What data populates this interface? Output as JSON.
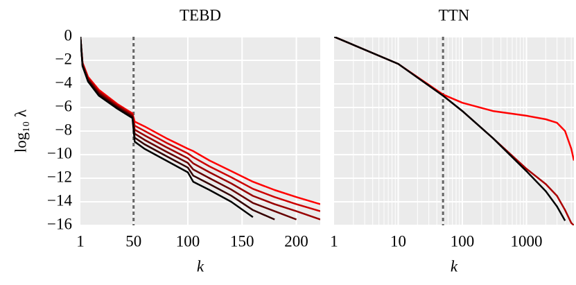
{
  "chart_data": [
    {
      "type": "line",
      "title": "TEBD",
      "xlabel": "k",
      "ylabel": "log₁₀ λ",
      "show_ytick_labels": true,
      "x": [
        1,
        3,
        8,
        18,
        35,
        49,
        51,
        60,
        80,
        100,
        105,
        120,
        140,
        160,
        180,
        200,
        222
      ],
      "series": [
        {
          "color": "#ff0000",
          "values": [
            0,
            -2.2,
            -3.4,
            -4.5,
            -5.7,
            -6.5,
            -7.2,
            -7.6,
            -8.6,
            -9.5,
            -9.7,
            -10.5,
            -11.4,
            -12.3,
            -13.0,
            -13.6,
            -14.2
          ]
        },
        {
          "color": "#cc0000",
          "values": [
            0,
            -2.26,
            -3.48,
            -4.6,
            -5.78,
            -6.58,
            -7.54,
            -7.98,
            -8.98,
            -9.9,
            -10.22,
            -11.0,
            -11.92,
            -12.9,
            -13.6,
            -14.2,
            -14.8
          ]
        },
        {
          "color": "#990000",
          "values": [
            0,
            -2.32,
            -3.56,
            -4.7,
            -5.86,
            -6.66,
            -7.88,
            -8.36,
            -9.36,
            -10.3,
            -10.74,
            -11.5,
            -12.44,
            -13.5,
            -14.2,
            -14.8,
            -15.5
          ]
        },
        {
          "color": "#660000",
          "values": [
            0,
            -2.38,
            -3.64,
            -4.8,
            -5.94,
            -6.74,
            -8.22,
            -8.74,
            -9.74,
            -10.7,
            -11.26,
            -12.0,
            -12.96,
            -14.1,
            -14.8,
            -15.5,
            null
          ]
        },
        {
          "color": "#330000",
          "values": [
            0,
            -2.44,
            -3.72,
            -4.9,
            -6.02,
            -6.82,
            -8.56,
            -9.12,
            -10.12,
            -11.1,
            -11.78,
            -12.5,
            -13.48,
            -14.7,
            -15.5,
            null,
            null
          ]
        },
        {
          "color": "#000000",
          "values": [
            0,
            -2.5,
            -3.8,
            -5.0,
            -6.1,
            -6.9,
            -8.9,
            -9.5,
            -10.5,
            -11.5,
            -12.3,
            -13.0,
            -14.0,
            -15.3,
            null,
            null,
            null
          ]
        }
      ],
      "vline": 50,
      "xscale": "linear",
      "xlim": [
        1,
        222
      ],
      "xticks": [
        1,
        50,
        100,
        150,
        200
      ],
      "xgrid": [
        50,
        100,
        150,
        200
      ],
      "ylim": [
        -16,
        0
      ],
      "yticks": [
        0,
        {
          "value": -2,
          "label": "−2"
        },
        {
          "value": -4,
          "label": "−4"
        },
        {
          "value": -6,
          "label": "−6"
        },
        {
          "value": -8,
          "label": "−8"
        },
        {
          "value": -10,
          "label": "−10"
        },
        {
          "value": -12,
          "label": "−12"
        },
        {
          "value": -14,
          "label": "−14"
        },
        {
          "value": -16,
          "label": "−16"
        }
      ],
      "grid": true
    },
    {
      "type": "line",
      "title": "TTN",
      "xlabel": "k",
      "show_ytick_labels": false,
      "x": [
        1,
        10,
        50,
        100,
        300,
        1000,
        2000,
        3000,
        4000,
        5000,
        5500
      ],
      "series": [
        {
          "color": "#ff0000",
          "values": [
            0,
            -2.3,
            -4.9,
            -5.6,
            -6.3,
            -6.7,
            -7.0,
            -7.3,
            -8.0,
            -9.5,
            -10.5
          ]
        },
        {
          "color": "#aa0000",
          "values": [
            0,
            -2.3,
            -5.0,
            -6.3,
            -8.6,
            -11.2,
            -12.5,
            -13.5,
            -14.7,
            -15.8,
            -16
          ]
        },
        {
          "color": "#000000",
          "values": [
            0,
            -2.3,
            -5.0,
            -6.3,
            -8.6,
            -11.4,
            -13.1,
            -14.4,
            -15.6,
            null,
            null
          ]
        }
      ],
      "vline": 50,
      "xscale": "log",
      "xlim": [
        1,
        5500
      ],
      "xticks": [
        1,
        10,
        100,
        1000
      ],
      "xgrid": [
        2,
        3,
        4,
        5,
        6,
        7,
        8,
        9,
        10,
        20,
        30,
        40,
        50,
        60,
        70,
        80,
        90,
        100,
        200,
        300,
        400,
        500,
        600,
        700,
        800,
        900,
        1000,
        2000,
        3000,
        4000,
        5000
      ],
      "ylim": [
        -16,
        0
      ],
      "yticks": [
        0,
        {
          "value": -2,
          "label": "−2"
        },
        {
          "value": -4,
          "label": "−4"
        },
        {
          "value": -6,
          "label": "−6"
        },
        {
          "value": -8,
          "label": "−8"
        },
        {
          "value": -10,
          "label": "−10"
        },
        {
          "value": -12,
          "label": "−12"
        },
        {
          "value": -14,
          "label": "−14"
        },
        {
          "value": -16,
          "label": "−16"
        }
      ],
      "grid": true
    }
  ]
}
